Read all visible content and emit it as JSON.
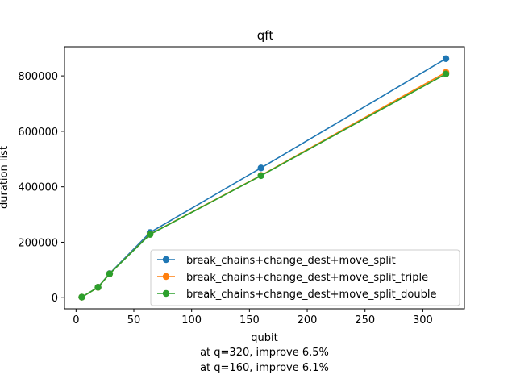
{
  "chart_data": {
    "type": "line",
    "title": "qft",
    "xlabel": "qubit",
    "ylabel": "duration list",
    "xlim": [
      -10,
      336
    ],
    "ylim": [
      -40000,
      905000
    ],
    "xticks": [
      0,
      50,
      100,
      150,
      200,
      250,
      300
    ],
    "yticks": [
      0,
      200000,
      400000,
      600000,
      800000
    ],
    "grid": false,
    "legend_position": "lower-right",
    "x": [
      5,
      19,
      29,
      64,
      160,
      320
    ],
    "series": [
      {
        "name": "break_chains+change_dest+move_split",
        "color": "#1f77b4",
        "values": [
          2000,
          38000,
          87000,
          235000,
          468000,
          862000
        ]
      },
      {
        "name": "break_chains+change_dest+move_split_triple",
        "color": "#ff7f0e",
        "values": [
          2000,
          37500,
          86000,
          229000,
          441000,
          813000
        ]
      },
      {
        "name": "break_chains+change_dest+move_split_double",
        "color": "#2ca02c",
        "values": [
          2000,
          37500,
          86000,
          228000,
          440000,
          807000
        ]
      }
    ],
    "annotations": [
      "at q=320, improve 6.5%",
      "at q=160, improve 6.1%"
    ]
  }
}
